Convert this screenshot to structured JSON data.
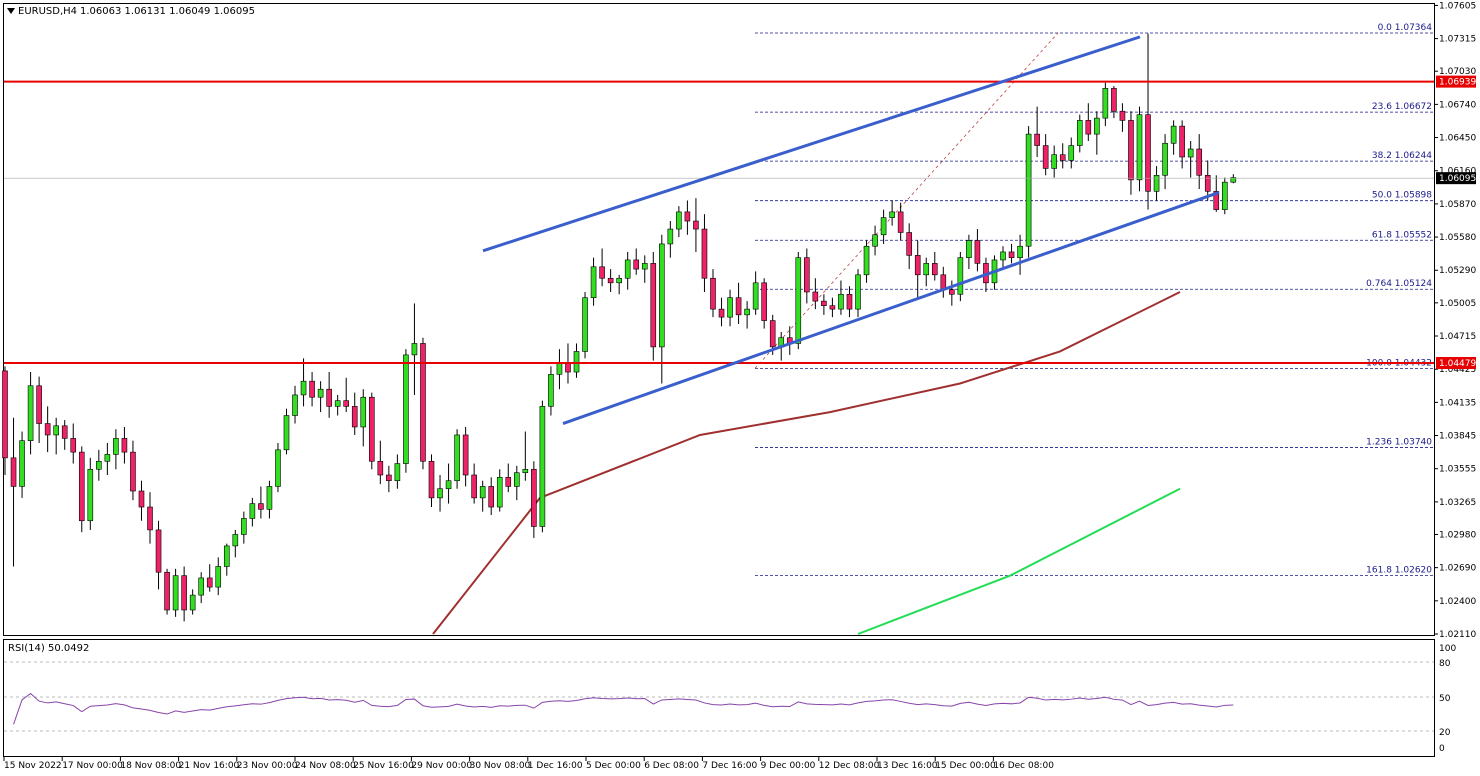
{
  "header": {
    "symbol": "EURUSD,H4",
    "ohlc": "1.06063 1.06131 1.06049 1.06095"
  },
  "rsi": {
    "label": "RSI(14) 50.0492",
    "levels": [
      "100",
      "80",
      "50",
      "20",
      "0"
    ]
  },
  "chart_data": {
    "type": "candlestick",
    "price_axis": {
      "ylim": [
        1.0211,
        1.076
      ],
      "ticks": [
        "1.07605",
        "1.07315",
        "1.07030",
        "1.06740",
        "1.06450",
        "1.06160",
        "1.05870",
        "1.05580",
        "1.05290",
        "1.05005",
        "1.04715",
        "1.04425",
        "1.04135",
        "1.03845",
        "1.03555",
        "1.03265",
        "1.02980",
        "1.02690",
        "1.02400",
        "1.02110"
      ]
    },
    "time_axis": {
      "labels": [
        "15 Nov 2022",
        "17 Nov 00:00",
        "18 Nov 08:00",
        "21 Nov 16:00",
        "23 Nov 00:00",
        "24 Nov 08:00",
        "25 Nov 16:00",
        "29 Nov 00:00",
        "30 Nov 08:00",
        "1 Dec 16:00",
        "5 Dec 00:00",
        "6 Dec 08:00",
        "7 Dec 16:00",
        "9 Dec 00:00",
        "12 Dec 08:00",
        "13 Dec 16:00",
        "15 Dec 00:00",
        "16 Dec 08:00"
      ]
    },
    "price_tags": [
      {
        "value": "1.06939",
        "price": 1.06939,
        "color": "#e60000"
      },
      {
        "value": "1.06095",
        "price": 1.06095,
        "color": "#000000"
      },
      {
        "value": "1.04479",
        "price": 1.04479,
        "color": "#e60000"
      }
    ],
    "horizontal_lines": [
      {
        "price": 1.06939,
        "color": "#e60000"
      },
      {
        "price": 1.04479,
        "color": "#e60000"
      }
    ],
    "fibonacci": [
      {
        "label": "0.0 1.07364",
        "price": 1.07364
      },
      {
        "label": "23.6 1.06672",
        "price": 1.06672
      },
      {
        "label": "38.2 1.06244",
        "price": 1.06244
      },
      {
        "label": "50.0 1.05898",
        "price": 1.05898
      },
      {
        "label": "61.8 1.05552",
        "price": 1.05552
      },
      {
        "label": "0.764 1.05124",
        "price": 1.05124
      },
      {
        "label": "100.0 1.04432",
        "price": 1.04432
      },
      {
        "label": "1.236 1.03740",
        "price": 1.0374
      },
      {
        "label": "161.8 1.02620",
        "price": 1.0262
      }
    ],
    "channel": {
      "color": "#3a5fcd",
      "upper": [
        [
          1.0546,
          1.0733
        ]
      ],
      "lower": [
        [
          1.0395,
          1.0597
        ]
      ]
    },
    "ma_100": {
      "color": "#a03030",
      "values": [
        1.0211,
        1.033,
        1.0385,
        1.0405,
        1.043,
        1.0458,
        1.051
      ]
    },
    "ma_200": {
      "color": "#22dd55",
      "values": [
        1.0211,
        1.0262,
        1.0338
      ]
    },
    "candles": [
      [
        1.0441,
        1.0445,
        1.035,
        1.0365
      ],
      [
        1.0365,
        1.04,
        1.027,
        1.034
      ],
      [
        1.034,
        1.0388,
        1.033,
        1.038
      ],
      [
        1.038,
        1.044,
        1.0368,
        1.0428
      ],
      [
        1.0428,
        1.0436,
        1.0378,
        1.0395
      ],
      [
        1.0395,
        1.041,
        1.037,
        1.0385
      ],
      [
        1.0385,
        1.04,
        1.0368,
        1.0393
      ],
      [
        1.0393,
        1.0398,
        1.0372,
        1.0382
      ],
      [
        1.0382,
        1.0395,
        1.036,
        1.037
      ],
      [
        1.037,
        1.0375,
        1.03,
        1.031
      ],
      [
        1.031,
        1.0365,
        1.0302,
        1.0355
      ],
      [
        1.0355,
        1.0372,
        1.0345,
        1.0362
      ],
      [
        1.0362,
        1.0378,
        1.035,
        1.0368
      ],
      [
        1.0368,
        1.039,
        1.0355,
        1.0382
      ],
      [
        1.0382,
        1.0392,
        1.036,
        1.037
      ],
      [
        1.037,
        1.038,
        1.0328,
        1.0336
      ],
      [
        1.0336,
        1.0345,
        1.031,
        1.0322
      ],
      [
        1.0322,
        1.0335,
        1.029,
        1.0302
      ],
      [
        1.0302,
        1.031,
        1.025,
        1.0265
      ],
      [
        1.0265,
        1.0268,
        1.0228,
        1.0232
      ],
      [
        1.0232,
        1.0268,
        1.0226,
        1.0262
      ],
      [
        1.0262,
        1.027,
        1.0222,
        1.0232
      ],
      [
        1.0232,
        1.025,
        1.0228,
        1.0245
      ],
      [
        1.0245,
        1.0265,
        1.0238,
        1.026
      ],
      [
        1.026,
        1.0272,
        1.0248,
        1.0252
      ],
      [
        1.0252,
        1.0278,
        1.0245,
        1.027
      ],
      [
        1.027,
        1.029,
        1.0262,
        1.0288
      ],
      [
        1.0288,
        1.0302,
        1.0278,
        1.0298
      ],
      [
        1.0298,
        1.0318,
        1.029,
        1.0312
      ],
      [
        1.0312,
        1.033,
        1.0305,
        1.0325
      ],
      [
        1.0325,
        1.034,
        1.0312,
        1.032
      ],
      [
        1.032,
        1.0345,
        1.0312,
        1.034
      ],
      [
        1.034,
        1.0378,
        1.0335,
        1.0372
      ],
      [
        1.0372,
        1.0408,
        1.0368,
        1.0402
      ],
      [
        1.0402,
        1.0428,
        1.0395,
        1.042
      ],
      [
        1.042,
        1.0452,
        1.041,
        1.0432
      ],
      [
        1.0432,
        1.044,
        1.041,
        1.0418
      ],
      [
        1.0418,
        1.0432,
        1.0405,
        1.0425
      ],
      [
        1.0425,
        1.044,
        1.04,
        1.041
      ],
      [
        1.041,
        1.042,
        1.0402,
        1.0415
      ],
      [
        1.0415,
        1.0435,
        1.0405,
        1.041
      ],
      [
        1.041,
        1.0422,
        1.0385,
        1.0392
      ],
      [
        1.0392,
        1.0425,
        1.0375,
        1.0418
      ],
      [
        1.0418,
        1.0422,
        1.0355,
        1.0362
      ],
      [
        1.0362,
        1.038,
        1.0342,
        1.035
      ],
      [
        1.035,
        1.0358,
        1.0335,
        1.0345
      ],
      [
        1.0345,
        1.0368,
        1.0338,
        1.036
      ],
      [
        1.036,
        1.046,
        1.0352,
        1.0455
      ],
      [
        1.0455,
        1.05,
        1.042,
        1.0465
      ],
      [
        1.0465,
        1.047,
        1.0355,
        1.0362
      ],
      [
        1.0362,
        1.0368,
        1.0322,
        1.033
      ],
      [
        1.033,
        1.035,
        1.0318,
        1.0338
      ],
      [
        1.0338,
        1.036,
        1.0325,
        1.0345
      ],
      [
        1.0345,
        1.039,
        1.0338,
        1.0385
      ],
      [
        1.0385,
        1.0392,
        1.034,
        1.035
      ],
      [
        1.035,
        1.036,
        1.0325,
        1.033
      ],
      [
        1.033,
        1.0345,
        1.0318,
        1.034
      ],
      [
        1.034,
        1.0348,
        1.0315,
        1.0322
      ],
      [
        1.0322,
        1.0355,
        1.0318,
        1.0348
      ],
      [
        1.0348,
        1.036,
        1.0335,
        1.034
      ],
      [
        1.034,
        1.0358,
        1.0328,
        1.0352
      ],
      [
        1.0352,
        1.0388,
        1.0345,
        1.0355
      ],
      [
        1.0355,
        1.0362,
        1.0295,
        1.0305
      ],
      [
        1.0305,
        1.0415,
        1.03,
        1.041
      ],
      [
        1.041,
        1.0445,
        1.0402,
        1.0438
      ],
      [
        1.0438,
        1.046,
        1.0425,
        1.0448
      ],
      [
        1.0448,
        1.0465,
        1.043,
        1.044
      ],
      [
        1.044,
        1.0465,
        1.0435,
        1.0458
      ],
      [
        1.0458,
        1.051,
        1.0452,
        1.0505
      ],
      [
        1.0505,
        1.054,
        1.0498,
        1.0532
      ],
      [
        1.0532,
        1.0548,
        1.0515,
        1.0522
      ],
      [
        1.0522,
        1.053,
        1.051,
        1.0518
      ],
      [
        1.0518,
        1.0525,
        1.0508,
        1.0522
      ],
      [
        1.0522,
        1.0545,
        1.0512,
        1.0538
      ],
      [
        1.0538,
        1.0548,
        1.0525,
        1.053
      ],
      [
        1.053,
        1.0542,
        1.0518,
        1.0535
      ],
      [
        1.0535,
        1.0545,
        1.045,
        1.0462
      ],
      [
        1.0462,
        1.056,
        1.043,
        1.0552
      ],
      [
        1.0552,
        1.0572,
        1.054,
        1.0565
      ],
      [
        1.0565,
        1.0585,
        1.0558,
        1.058
      ],
      [
        1.058,
        1.059,
        1.056,
        1.0572
      ],
      [
        1.0572,
        1.0592,
        1.0545,
        1.0565
      ],
      [
        1.0565,
        1.0578,
        1.051,
        1.0522
      ],
      [
        1.0522,
        1.053,
        1.0488,
        1.0495
      ],
      [
        1.0495,
        1.0505,
        1.048,
        1.0488
      ],
      [
        1.0488,
        1.0512,
        1.048,
        1.0505
      ],
      [
        1.0505,
        1.0518,
        1.0482,
        1.049
      ],
      [
        1.049,
        1.0502,
        1.0478,
        1.0495
      ],
      [
        1.0495,
        1.0528,
        1.049,
        1.0518
      ],
      [
        1.0518,
        1.0522,
        1.0478,
        1.0485
      ],
      [
        1.0485,
        1.049,
        1.0455,
        1.0462
      ],
      [
        1.0462,
        1.0475,
        1.045,
        1.047
      ],
      [
        1.047,
        1.048,
        1.0455,
        1.0465
      ],
      [
        1.0465,
        1.0545,
        1.046,
        1.054
      ],
      [
        1.054,
        1.0548,
        1.05,
        1.051
      ],
      [
        1.051,
        1.0522,
        1.0495,
        1.0502
      ],
      [
        1.0502,
        1.0508,
        1.049,
        1.0498
      ],
      [
        1.0498,
        1.0505,
        1.0488,
        1.0495
      ],
      [
        1.0495,
        1.052,
        1.049,
        1.0508
      ],
      [
        1.0508,
        1.0515,
        1.0488,
        1.0495
      ],
      [
        1.0495,
        1.053,
        1.0488,
        1.0525
      ],
      [
        1.0525,
        1.0555,
        1.0518,
        1.055
      ],
      [
        1.055,
        1.0568,
        1.0542,
        1.056
      ],
      [
        1.056,
        1.0582,
        1.0552,
        1.0575
      ],
      [
        1.0575,
        1.059,
        1.0568,
        1.058
      ],
      [
        1.058,
        1.0588,
        1.0555,
        1.0562
      ],
      [
        1.0562,
        1.057,
        1.053,
        1.0542
      ],
      [
        1.0542,
        1.0555,
        1.0505,
        1.0525
      ],
      [
        1.0525,
        1.054,
        1.0515,
        1.0535
      ],
      [
        1.0535,
        1.0545,
        1.052,
        1.0525
      ],
      [
        1.0525,
        1.0532,
        1.0505,
        1.0512
      ],
      [
        1.0512,
        1.052,
        1.0498,
        1.0508
      ],
      [
        1.0508,
        1.0545,
        1.0502,
        1.054
      ],
      [
        1.054,
        1.056,
        1.053,
        1.0555
      ],
      [
        1.0555,
        1.0565,
        1.0528,
        1.0535
      ],
      [
        1.0535,
        1.054,
        1.051,
        1.0518
      ],
      [
        1.0518,
        1.0542,
        1.0512,
        1.0538
      ],
      [
        1.0538,
        1.055,
        1.053,
        1.0545
      ],
      [
        1.0545,
        1.0552,
        1.0535,
        1.054
      ],
      [
        1.054,
        1.056,
        1.0525,
        1.055
      ],
      [
        1.055,
        1.0655,
        1.054,
        1.0648
      ],
      [
        1.0648,
        1.0672,
        1.0628,
        1.0638
      ],
      [
        1.0638,
        1.0648,
        1.0612,
        1.0618
      ],
      [
        1.0618,
        1.0638,
        1.061,
        1.063
      ],
      [
        1.063,
        1.064,
        1.0618,
        1.0625
      ],
      [
        1.0625,
        1.0645,
        1.0618,
        1.0638
      ],
      [
        1.0638,
        1.0665,
        1.0632,
        1.066
      ],
      [
        1.066,
        1.0675,
        1.0642,
        1.0648
      ],
      [
        1.0648,
        1.0668,
        1.063,
        1.0662
      ],
      [
        1.0662,
        1.0693,
        1.0655,
        1.0688
      ],
      [
        1.0688,
        1.069,
        1.0662,
        1.0668
      ],
      [
        1.0668,
        1.0675,
        1.065,
        1.066
      ],
      [
        1.066,
        1.0668,
        1.0595,
        1.0608
      ],
      [
        1.0608,
        1.0672,
        1.0598,
        1.0665
      ],
      [
        1.0665,
        1.0736,
        1.0582,
        1.0598
      ],
      [
        1.0598,
        1.062,
        1.059,
        1.0612
      ],
      [
        1.0612,
        1.0648,
        1.06,
        1.064
      ],
      [
        1.064,
        1.066,
        1.063,
        1.0655
      ],
      [
        1.0655,
        1.066,
        1.0618,
        1.0628
      ],
      [
        1.0628,
        1.0642,
        1.061,
        1.0635
      ],
      [
        1.0635,
        1.0648,
        1.06,
        1.0612
      ],
      [
        1.0612,
        1.0625,
        1.059,
        1.0598
      ],
      [
        1.0598,
        1.0612,
        1.058,
        1.0582
      ],
      [
        1.0582,
        1.061,
        1.0578,
        1.0606
      ],
      [
        1.0606,
        1.0613,
        1.0605,
        1.061
      ]
    ]
  }
}
